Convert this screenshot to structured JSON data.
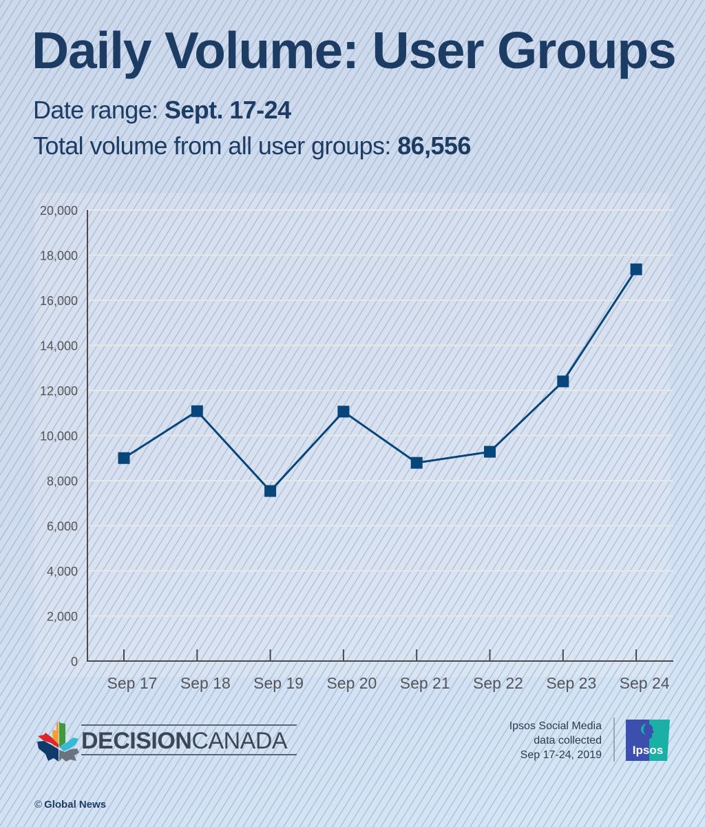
{
  "header": {
    "title": "Daily Volume: User Groups",
    "date_range_label": "Date range: ",
    "date_range_value": "Sept. 17-24",
    "total_label": "Total volume from all user groups: ",
    "total_value": "86,556"
  },
  "chart_data": {
    "type": "line",
    "title": "Daily Volume: User Groups",
    "subtitle": "Date range: Sept. 17-24 — Total volume from all user groups: 86,556",
    "xlabel": "",
    "ylabel": "",
    "categories": [
      "Sep 17",
      "Sep 18",
      "Sep 19",
      "Sep 20",
      "Sep 21",
      "Sep 22",
      "Sep 23",
      "Sep 24"
    ],
    "series": [
      {
        "name": "Daily volume",
        "values": [
          9000,
          11080,
          7540,
          11060,
          8790,
          9280,
          12400,
          17370
        ],
        "color": "#08457a",
        "marker": "square"
      }
    ],
    "ylim": [
      0,
      20000
    ],
    "yticks": [
      0,
      2000,
      4000,
      6000,
      8000,
      10000,
      12000,
      14000,
      16000,
      18000,
      20000
    ],
    "ytick_labels": [
      "0",
      "2,000",
      "4,000",
      "6,000",
      "8,000",
      "10,000",
      "12,000",
      "14,000",
      "16,000",
      "18,000",
      "20,000"
    ],
    "grid": true,
    "legend": "none"
  },
  "footer": {
    "brand_bold": "DECISION",
    "brand_light": "CANADA",
    "source_lines": [
      "Ipsos Social Media",
      "data collected",
      "Sep 17-24, 2019"
    ],
    "ipsos_label": "Ipsos",
    "credit_symbol": "©",
    "credit": "Global News"
  },
  "colors": {
    "title": "#1c3c63",
    "line": "#08457a",
    "axis": "#4a4a4e",
    "tick_label": "#555559",
    "gridline": "#e6e8ea",
    "ipsos_blue": "#3d4fae",
    "ipsos_teal": "#1bb0a6"
  }
}
